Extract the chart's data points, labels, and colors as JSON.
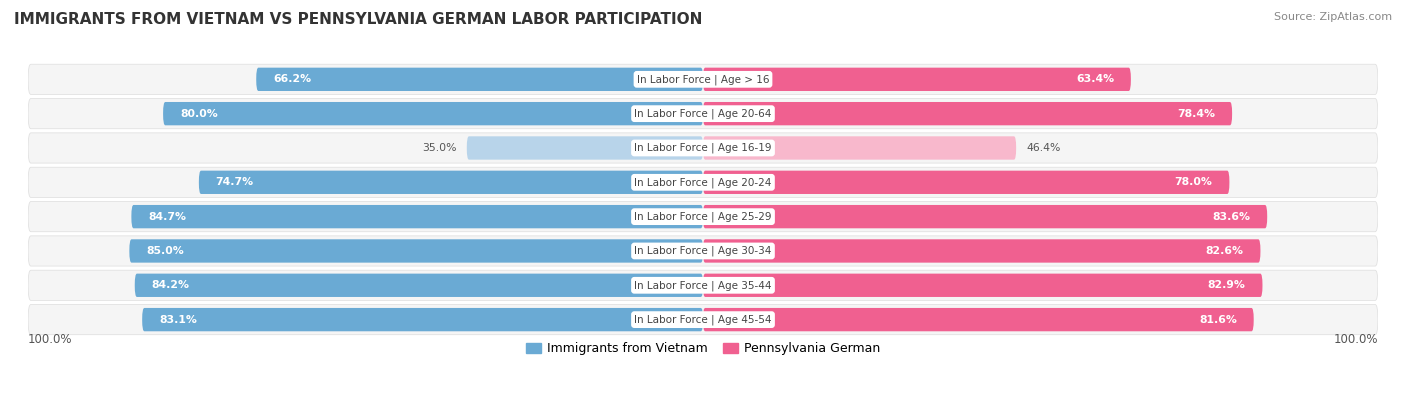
{
  "title": "IMMIGRANTS FROM VIETNAM VS PENNSYLVANIA GERMAN LABOR PARTICIPATION",
  "source": "Source: ZipAtlas.com",
  "categories": [
    "In Labor Force | Age > 16",
    "In Labor Force | Age 20-64",
    "In Labor Force | Age 16-19",
    "In Labor Force | Age 20-24",
    "In Labor Force | Age 25-29",
    "In Labor Force | Age 30-34",
    "In Labor Force | Age 35-44",
    "In Labor Force | Age 45-54"
  ],
  "vietnam_values": [
    66.2,
    80.0,
    35.0,
    74.7,
    84.7,
    85.0,
    84.2,
    83.1
  ],
  "pagerman_values": [
    63.4,
    78.4,
    46.4,
    78.0,
    83.6,
    82.6,
    82.9,
    81.6
  ],
  "vietnam_color_dark": "#6aaad4",
  "vietnam_color_light": "#b8d4ea",
  "pagerman_color_dark": "#f06090",
  "pagerman_color_light": "#f8b8cc",
  "row_bg_color": "#ffffff",
  "row_border_color": "#e0e0e0",
  "center_label_color": "#444444",
  "axis_label_left": "100.0%",
  "axis_label_right": "100.0%",
  "legend_vietnam": "Immigrants from Vietnam",
  "legend_pagerman": "Pennsylvania German",
  "max_val": 100.0,
  "low_threshold": 50.0
}
